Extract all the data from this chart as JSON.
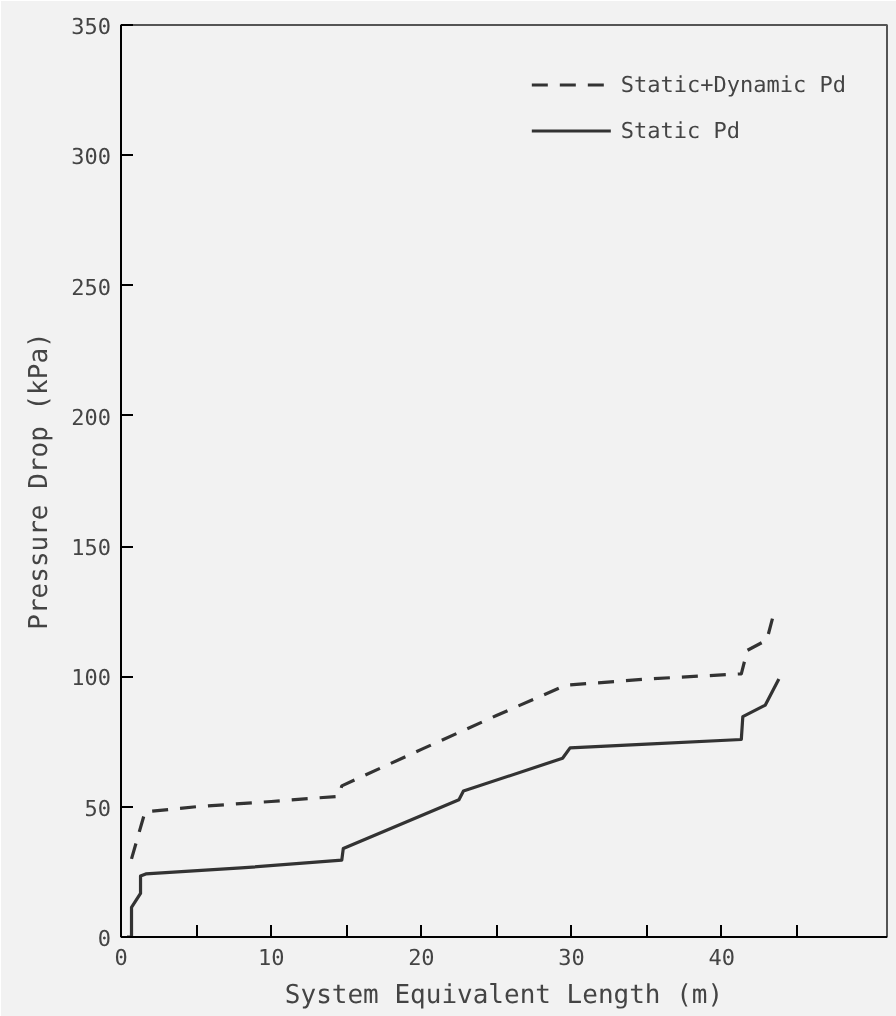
{
  "chart_data": {
    "type": "line",
    "xlabel": "System Equivalent Length (m)",
    "ylabel": "Pressure Drop (kPa)",
    "xlim": [
      0,
      51
    ],
    "ylim": [
      0,
      350
    ],
    "xticks": [
      0,
      {
        "value": 5,
        "label": null
      },
      10,
      {
        "value": 15,
        "label": null
      },
      20,
      {
        "value": 25,
        "label": null
      },
      30,
      {
        "value": 35,
        "label": null
      },
      40,
      {
        "value": 45,
        "label": null
      }
    ],
    "yticks": [
      0,
      50,
      100,
      150,
      200,
      250,
      300,
      350
    ],
    "legend": "top right",
    "grid": false,
    "series": [
      {
        "name": "Static+Dynamic Pd",
        "color": "#333333",
        "line_style": "dashed",
        "x": [
          0.7,
          1.2,
          1.6,
          5,
          10,
          14.5,
          14.7,
          20,
          25,
          29.6,
          35,
          41.3,
          41.7,
          43,
          43.5
        ],
        "values": [
          30,
          40,
          48,
          50,
          52,
          54,
          58,
          72,
          85,
          96.6,
          99,
          101,
          110,
          114,
          125
        ]
      },
      {
        "name": "Static Pd",
        "color": "#333333",
        "line_style": "solid",
        "x": [
          0.4,
          0.7,
          0.7,
          1.3,
          1.3,
          1.65,
          8,
          14.7,
          14.8,
          22.5,
          22.8,
          29.4,
          29.9,
          35,
          41.3,
          41.4,
          42.9,
          43.8
        ],
        "values": [
          0,
          0,
          11.4,
          16.7,
          23.4,
          24.2,
          26.5,
          29.5,
          34,
          52.7,
          56,
          68.6,
          72.6,
          74,
          75.8,
          84.6,
          89,
          99
        ]
      }
    ]
  }
}
